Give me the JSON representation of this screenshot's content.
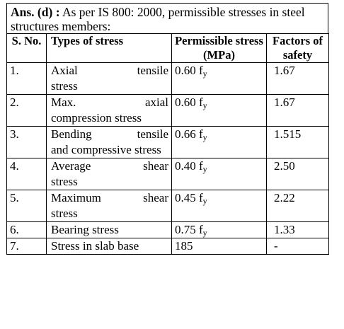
{
  "intro": {
    "answer_label": "Ans. (d) :",
    "text": "As per IS 800: 2000, permissible stresses in steel structures members:"
  },
  "table": {
    "headers": {
      "sno": "S. No.",
      "type": "Types of stress",
      "perm": "Permissible stress (MPa)",
      "factor": "Factors of safety"
    },
    "rows": [
      {
        "sno": "1.",
        "type_line1": "Axial tensile",
        "type_rest": "stress",
        "perm_coef": "0.60 f",
        "perm_sub": "y",
        "factor": "1.67"
      },
      {
        "sno": "2.",
        "type_line1": "Max. axial",
        "type_rest": "compression stress",
        "perm_coef": "0.60 f",
        "perm_sub": "y",
        "factor": "1.67"
      },
      {
        "sno": "3.",
        "type_line1": "Bending tensile",
        "type_rest": "and compressive stress",
        "perm_coef": "0.66 f",
        "perm_sub": "y",
        "factor": "1.515"
      },
      {
        "sno": "4.",
        "type_line1": "Average shear",
        "type_rest": "stress",
        "perm_coef": "0.40 f",
        "perm_sub": "y",
        "factor": "2.50"
      },
      {
        "sno": "5.",
        "type_line1": "Maximum shear",
        "type_rest": "stress",
        "perm_coef": "0.45 f",
        "perm_sub": "y",
        "factor": "2.22"
      },
      {
        "sno": "6.",
        "type_line1": "Bearing stress",
        "type_rest": "",
        "perm_coef": "0.75 f",
        "perm_sub": "y",
        "factor": "1.33"
      },
      {
        "sno": "7.",
        "type_line1": "Stress in slab base",
        "type_rest": "",
        "perm_coef": "185",
        "perm_sub": "",
        "factor": "-"
      }
    ]
  }
}
